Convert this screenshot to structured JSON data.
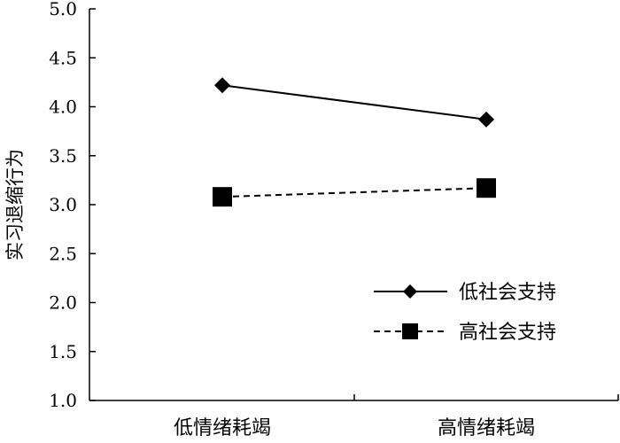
{
  "chart_data": {
    "type": "line",
    "ylabel": "实习退缩行为",
    "xlabel": "",
    "categories": [
      "低情绪耗竭",
      "高情绪耗竭"
    ],
    "ylim": [
      1.0,
      5.0
    ],
    "yticks": [
      "1.0",
      "1.5",
      "2.0",
      "2.5",
      "3.0",
      "3.5",
      "4.0",
      "4.5",
      "5.0"
    ],
    "legend_position": "bottom-right",
    "grid": false,
    "series": [
      {
        "name": "低社会支持",
        "values": [
          4.22,
          3.87
        ],
        "marker": "diamond",
        "line_style": "solid",
        "color": "#000000"
      },
      {
        "name": "高社会支持",
        "values": [
          3.08,
          3.17
        ],
        "marker": "square",
        "line_style": "dashed",
        "color": "#000000"
      }
    ]
  }
}
